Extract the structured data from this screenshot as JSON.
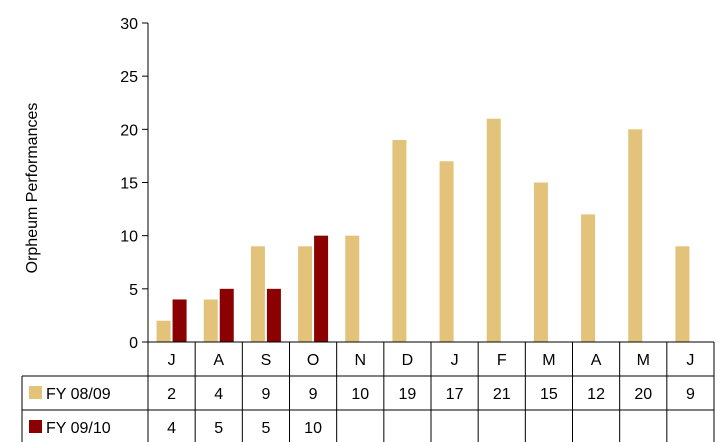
{
  "chart_data": {
    "type": "bar",
    "ylabel": "Orpheum Performances",
    "ylim": [
      0,
      30
    ],
    "yticks": [
      0,
      5,
      10,
      15,
      20,
      25,
      30
    ],
    "grid": false,
    "legend": "data-table-left",
    "categories": [
      "J",
      "A",
      "S",
      "O",
      "N",
      "D",
      "J",
      "F",
      "M",
      "A",
      "M",
      "J"
    ],
    "series": [
      {
        "name": "FY 08/09",
        "color": "#E3C37A",
        "values": [
          2,
          4,
          9,
          9,
          10,
          19,
          17,
          21,
          15,
          12,
          20,
          9
        ],
        "table": [
          "2",
          "4",
          "9",
          "9",
          "10",
          "19",
          "17",
          "21",
          "15",
          "12",
          "20",
          "9"
        ]
      },
      {
        "name": "FY 09/10",
        "color": "#8B0000",
        "values": [
          4,
          5,
          5,
          10,
          null,
          null,
          null,
          null,
          null,
          null,
          null,
          null
        ],
        "table": [
          "4",
          "5",
          "5",
          "10",
          "",
          "",
          "",
          "",
          "",
          "",
          "",
          ""
        ]
      }
    ]
  }
}
